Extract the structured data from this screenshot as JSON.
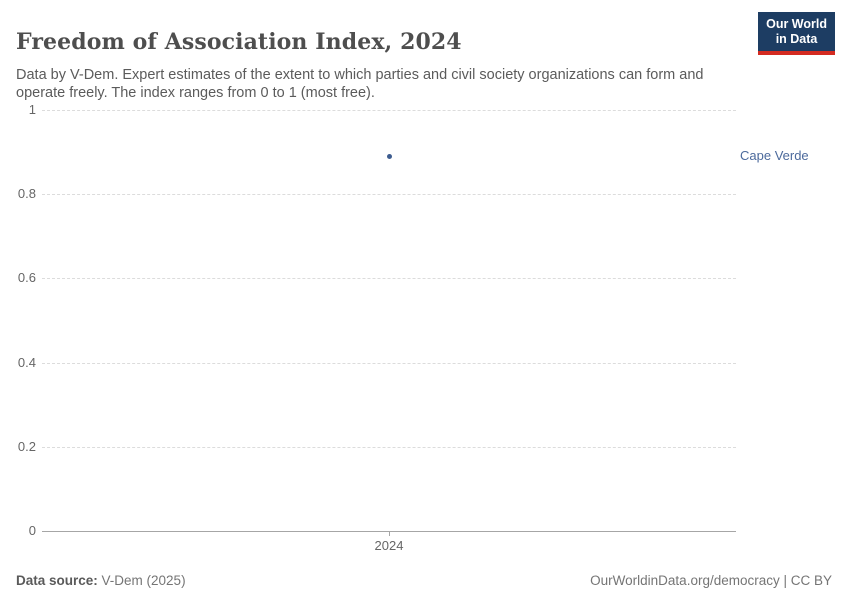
{
  "header": {
    "title": "Freedom of Association Index, 2024",
    "subtitle": "Data by V-Dem. Expert estimates of the extent to which parties and civil society organizations can form and operate freely. The index ranges from 0 to 1 (most free).",
    "logo": {
      "line1": "Our World",
      "line2": "in Data",
      "bg_color": "#1d3d63",
      "accent_color": "#d42b21",
      "text_color": "#ffffff"
    }
  },
  "chart_data": {
    "type": "scatter",
    "title": "Freedom of Association Index, 2024",
    "x": [
      2024
    ],
    "series": [
      {
        "name": "Cape Verde",
        "values": [
          0.89
        ],
        "color": "#3d5c8f",
        "label_color": "#4c6a9c"
      }
    ],
    "xlabel": "",
    "ylabel": "",
    "ylim": [
      0,
      1
    ],
    "yticks": [
      1,
      0.8,
      0.6,
      0.4,
      0.2,
      0
    ],
    "ytick_labels": [
      "1",
      "0.8",
      "0.6",
      "0.4",
      "0.2",
      "0"
    ],
    "xticks": [
      2024
    ],
    "xtick_labels": [
      "2024"
    ],
    "grid": "horizontal-dashed",
    "gridline_color": "#dcdcdc",
    "axis_color": "#a6a6a6",
    "tick_label_color": "#666666",
    "legend_position": "right-of-point"
  },
  "footer": {
    "source_label": "Data source:",
    "source_value": " V-Dem (2025)",
    "credit": "OurWorldinData.org/democracy | CC BY"
  }
}
